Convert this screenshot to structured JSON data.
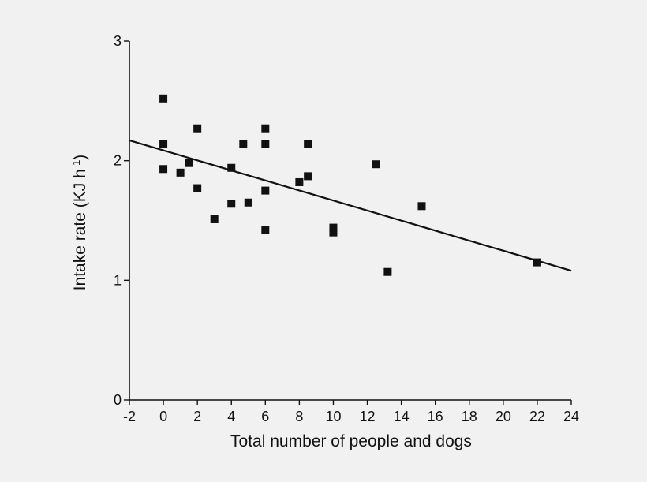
{
  "chart_data": {
    "type": "scatter",
    "title": "",
    "xlabel": "Total number of people and dogs",
    "ylabel_main": "Intake rate (KJ h",
    "ylabel_sup": "-1",
    "ylabel_close": ")",
    "xlim": [
      -2,
      24
    ],
    "ylim": [
      0,
      3
    ],
    "x_ticks": [
      -2,
      0,
      2,
      4,
      6,
      8,
      10,
      12,
      14,
      16,
      18,
      20,
      22,
      24
    ],
    "y_ticks": [
      0,
      1,
      2,
      3
    ],
    "grid": false,
    "legend": "none",
    "points": [
      {
        "x": 0,
        "y": 2.52
      },
      {
        "x": 0,
        "y": 2.14
      },
      {
        "x": 0,
        "y": 1.93
      },
      {
        "x": 1,
        "y": 1.9
      },
      {
        "x": 1.5,
        "y": 1.98
      },
      {
        "x": 2,
        "y": 2.27
      },
      {
        "x": 2,
        "y": 1.77
      },
      {
        "x": 3,
        "y": 1.51
      },
      {
        "x": 4,
        "y": 1.94
      },
      {
        "x": 4,
        "y": 1.64
      },
      {
        "x": 4.7,
        "y": 2.14
      },
      {
        "x": 5,
        "y": 1.65
      },
      {
        "x": 6,
        "y": 2.27
      },
      {
        "x": 6,
        "y": 2.14
      },
      {
        "x": 6,
        "y": 1.75
      },
      {
        "x": 6,
        "y": 1.42
      },
      {
        "x": 8,
        "y": 1.82
      },
      {
        "x": 8.5,
        "y": 2.14
      },
      {
        "x": 8.5,
        "y": 1.87
      },
      {
        "x": 10,
        "y": 1.44
      },
      {
        "x": 10,
        "y": 1.4
      },
      {
        "x": 12.5,
        "y": 1.97
      },
      {
        "x": 13.2,
        "y": 1.07
      },
      {
        "x": 15.2,
        "y": 1.62
      },
      {
        "x": 22,
        "y": 1.15
      }
    ],
    "trendline": {
      "x": [
        -2,
        24
      ],
      "y": [
        2.17,
        1.08
      ]
    },
    "colors": {
      "marker": "#111111",
      "line": "#111111",
      "axis": "#111111",
      "background": "#f1f1f1"
    }
  }
}
